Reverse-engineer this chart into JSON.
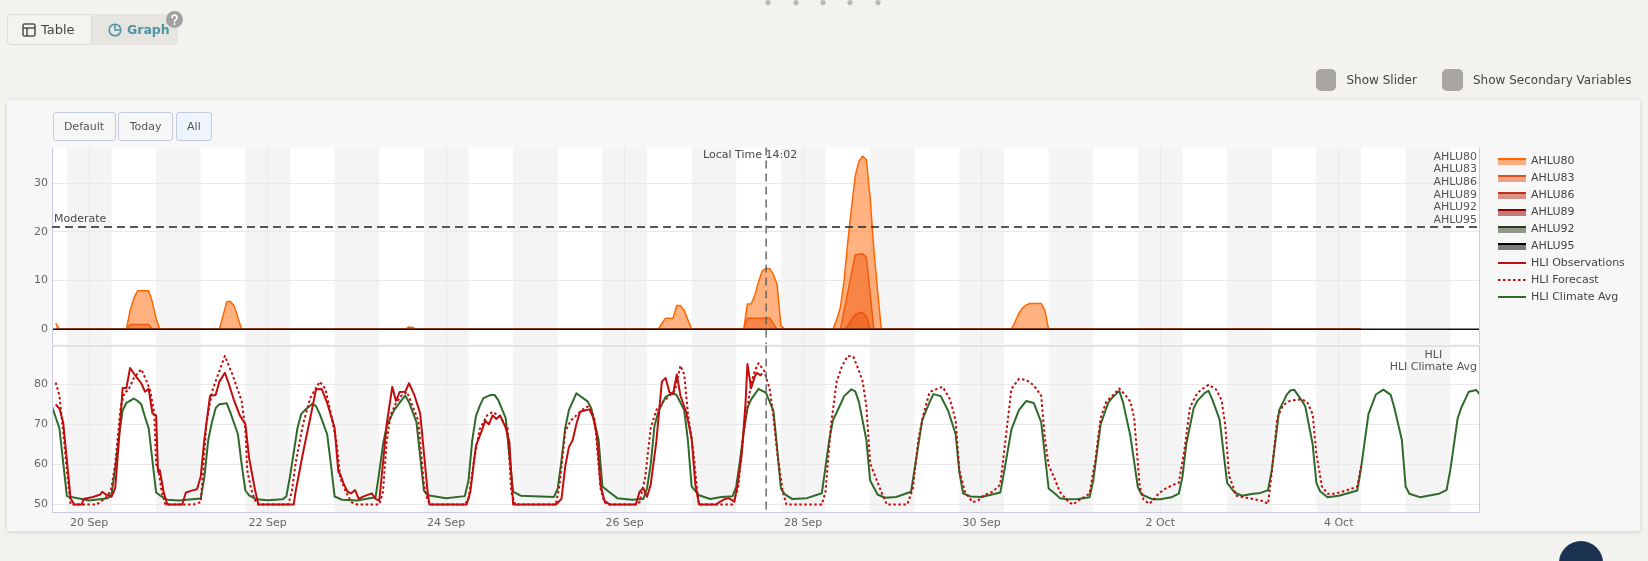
{
  "chart_data": [
    {
      "type": "area",
      "annotations": [
        "Table",
        "Graph",
        "Show Slider",
        "Show Secondary Variables",
        "Default",
        "Today",
        "All",
        "AHLU80",
        "AHLU83",
        "AHLU86",
        "AHLU89",
        "AHLU92",
        "AHLU95"
      ],
      "xlim": [
        "--09-19T14:00",
        "--10-05T14:00"
      ],
      "xticks": [
        {
          "value": "--09-20",
          "label": null
        },
        {
          "value": "--09-22",
          "label": null
        },
        {
          "value": "--09-24",
          "label": null
        },
        {
          "value": "--09-26",
          "label": null
        },
        {
          "value": "--09-28",
          "label": null
        },
        {
          "value": "--09-30",
          "label": null
        },
        {
          "value": "--10-02",
          "label": null
        },
        {
          "value": "--10-04",
          "label": null
        }
      ],
      "ylim": [
        -3,
        37.3
      ],
      "yticks": [
        0,
        10,
        20,
        30
      ],
      "grid": true,
      "legend": "right",
      "tick_labels": "y",
      "ref_lines": [
        {
          "axis": "y",
          "value": 21,
          "label": "Moderate",
          "color": "#222222",
          "line_style": "dashed"
        },
        {
          "axis": "x",
          "value": "--09-27T14:02",
          "label": "Local Time 14:02",
          "color": "#555555",
          "line_style": "dashed"
        }
      ],
      "bands": [
        {
          "axis": "x",
          "from": "--09-19T18:00",
          "to": "--09-20T06:00",
          "color": "#f4f4f4"
        },
        {
          "axis": "x",
          "from": "--09-20T18:00",
          "to": "--09-21T06:00",
          "color": "#f4f4f4"
        },
        {
          "axis": "x",
          "from": "--09-21T18:00",
          "to": "--09-22T06:00",
          "color": "#f4f4f4"
        },
        {
          "axis": "x",
          "from": "--09-22T18:00",
          "to": "--09-23T06:00",
          "color": "#f4f4f4"
        },
        {
          "axis": "x",
          "from": "--09-23T18:00",
          "to": "--09-24T06:00",
          "color": "#f4f4f4"
        },
        {
          "axis": "x",
          "from": "--09-24T18:00",
          "to": "--09-25T06:00",
          "color": "#f4f4f4"
        },
        {
          "axis": "x",
          "from": "--09-25T18:00",
          "to": "--09-26T06:00",
          "color": "#f4f4f4"
        },
        {
          "axis": "x",
          "from": "--09-26T18:00",
          "to": "--09-27T06:00",
          "color": "#f4f4f4"
        },
        {
          "axis": "x",
          "from": "--09-27T18:00",
          "to": "--09-28T06:00",
          "color": "#f4f4f4"
        },
        {
          "axis": "x",
          "from": "--09-28T18:00",
          "to": "--09-29T06:00",
          "color": "#f4f4f4"
        },
        {
          "axis": "x",
          "from": "--09-29T18:00",
          "to": "--09-30T06:00",
          "color": "#f4f4f4"
        },
        {
          "axis": "x",
          "from": "--09-30T18:00",
          "to": "--10-01T06:00",
          "color": "#f4f4f4"
        },
        {
          "axis": "x",
          "from": "--10-01T18:00",
          "to": "--10-02T06:00",
          "color": "#f4f4f4"
        },
        {
          "axis": "x",
          "from": "--10-02T18:00",
          "to": "--10-03T06:00",
          "color": "#f4f4f4"
        },
        {
          "axis": "x",
          "from": "--10-03T18:00",
          "to": "--10-04T06:00",
          "color": "#f4f4f4"
        },
        {
          "axis": "x",
          "from": "--10-04T18:00",
          "to": "--10-05T06:00",
          "color": "#f4f4f4"
        }
      ],
      "series": [
        {
          "name": "AHLU80",
          "color": "#ff6600",
          "x": [
            "--09-19T15:00",
            "--09-19T16:00",
            "--09-20T10:00",
            "--09-20T11:00",
            "--09-20T12:00",
            "--09-20T13:00",
            "--09-20T16:00",
            "--09-20T17:00",
            "--09-20T18:00",
            "--09-20T19:00",
            "--09-21T11:00",
            "--09-21T13:00",
            "--09-21T14:00",
            "--09-21T15:00",
            "--09-21T17:00",
            "--09-23T13:00",
            "--09-23T14:00",
            "--09-23T15:00",
            "--09-23T16:00",
            "--09-26T09:00",
            "--09-26T10:00",
            "--09-26T11:00",
            "--09-26T13:00",
            "--09-26T14:00",
            "--09-26T15:00",
            "--09-26T16:00",
            "--09-26T18:00",
            "--09-27T08:00",
            "--09-27T09:00",
            "--09-27T10:00",
            "--09-27T11:00",
            "--09-27T12:00",
            "--09-27T13:00",
            "--09-27T14:00",
            "--09-27T15:00",
            "--09-27T16:00",
            "--09-27T17:00",
            "--09-27T18:00",
            "--09-27T19:00",
            "--09-28T08:00",
            "--09-28T09:00",
            "--09-28T10:00",
            "--09-28T11:00",
            "--09-28T12:00",
            "--09-28T13:00",
            "--09-28T14:00",
            "--09-28T15:00",
            "--09-28T16:00",
            "--09-28T17:00",
            "--09-28T18:00",
            "--09-28T19:00",
            "--09-28T20:00",
            "--09-28T21:00",
            "--09-30T08:00",
            "--09-30T09:00",
            "--09-30T10:00",
            "--09-30T11:00",
            "--09-30T12:00",
            "--09-30T13:00",
            "--09-30T16:00",
            "--09-30T17:00",
            "--09-30T18:00",
            "--10-04T06:00"
          ],
          "values": [
            1.3,
            0,
            0,
            3.9,
            6.4,
            7.9,
            7.9,
            5.6,
            2.2,
            0,
            0,
            5.7,
            5.7,
            4.8,
            0,
            0,
            0.5,
            0.4,
            0,
            0,
            1.2,
            2.3,
            2.3,
            4.9,
            4.9,
            3.9,
            0,
            0,
            5.2,
            5.2,
            7,
            9.8,
            12,
            12.5,
            12.5,
            11.2,
            9.2,
            0.8,
            0,
            0,
            2,
            4.5,
            10,
            18,
            25,
            31.5,
            34.5,
            35.5,
            34.8,
            27,
            16.5,
            8,
            0,
            0,
            1.6,
            3.3,
            4.4,
            5,
            5.3,
            5.3,
            3.9,
            0,
            0
          ]
        },
        {
          "name": "AHLU83",
          "color": "#e0501a",
          "x": [
            "--09-19T15:00",
            "--09-20T10:00",
            "--09-20T11:00",
            "--09-20T16:00",
            "--09-20T17:00",
            "--09-27T08:00",
            "--09-27T09:00",
            "--09-27T15:00",
            "--09-27T16:00",
            "--09-27T17:00",
            "--09-28T10:00",
            "--09-28T11:00",
            "--09-28T12:00",
            "--09-28T13:00",
            "--09-28T14:00",
            "--09-28T16:00",
            "--09-28T17:00",
            "--09-28T18:00",
            "--09-28T19:00",
            "--10-04T06:00"
          ],
          "values": [
            0,
            0,
            1,
            1,
            0,
            0,
            2.3,
            2.3,
            1.1,
            0,
            0,
            3.8,
            7.7,
            11.5,
            15.3,
            15.5,
            14.8,
            7.4,
            0,
            0
          ]
        },
        {
          "name": "AHLU86",
          "color": "#c0301a",
          "x": [
            "--09-19T15:00",
            "--09-28T11:00",
            "--09-28T12:00",
            "--09-28T13:00",
            "--09-28T14:00",
            "--09-28T15:00",
            "--09-28T16:00",
            "--09-28T17:00",
            "--09-28T18:00",
            "--10-04T06:00"
          ],
          "values": [
            0,
            0,
            0.7,
            2,
            3,
            3.4,
            3.4,
            2.6,
            0,
            0
          ]
        },
        {
          "name": "AHLU89",
          "color": "#8b0000"
        },
        {
          "name": "AHLU92",
          "color": "#2e3b1e"
        },
        {
          "name": "AHLU95",
          "color": "#000000"
        }
      ]
    },
    {
      "type": "line",
      "annotations": [
        "HLI",
        "HLI Climate Avg"
      ],
      "xlim": [
        "--09-19T14:00",
        "--10-05T14:00"
      ],
      "xticks": [
        {
          "value": "--09-20",
          "label": "20 Sep"
        },
        {
          "value": "--09-22",
          "label": "22 Sep"
        },
        {
          "value": "--09-24",
          "label": "24 Sep"
        },
        {
          "value": "--09-26",
          "label": "26 Sep"
        },
        {
          "value": "--09-28",
          "label": "28 Sep"
        },
        {
          "value": "--09-30",
          "label": "30 Sep"
        },
        {
          "value": "--10-02",
          "label": "2 Oct"
        },
        {
          "value": "--10-04",
          "label": "4 Oct"
        }
      ],
      "ylim": [
        47.9,
        89.6
      ],
      "yticks": [
        50,
        60,
        70,
        80
      ],
      "grid": true,
      "legend": "top right",
      "ref_lines": [
        {
          "axis": "x",
          "value": "--09-27T14:02",
          "color": "#555555",
          "line_style": "dashed"
        }
      ],
      "bands": [
        {
          "axis": "x",
          "from": "--09-19T18:00",
          "to": "--09-20T06:00",
          "color": "#f4f4f4"
        },
        {
          "axis": "x",
          "from": "--09-20T18:00",
          "to": "--09-21T06:00",
          "color": "#f4f4f4"
        },
        {
          "axis": "x",
          "from": "--09-21T18:00",
          "to": "--09-22T06:00",
          "color": "#f4f4f4"
        },
        {
          "axis": "x",
          "from": "--09-22T18:00",
          "to": "--09-23T06:00",
          "color": "#f4f4f4"
        },
        {
          "axis": "x",
          "from": "--09-23T18:00",
          "to": "--09-24T06:00",
          "color": "#f4f4f4"
        },
        {
          "axis": "x",
          "from": "--09-24T18:00",
          "to": "--09-25T06:00",
          "color": "#f4f4f4"
        },
        {
          "axis": "x",
          "from": "--09-25T18:00",
          "to": "--09-26T06:00",
          "color": "#f4f4f4"
        },
        {
          "axis": "x",
          "from": "--09-26T18:00",
          "to": "--09-27T06:00",
          "color": "#f4f4f4"
        },
        {
          "axis": "x",
          "from": "--09-27T18:00",
          "to": "--09-28T06:00",
          "color": "#f4f4f4"
        },
        {
          "axis": "x",
          "from": "--09-28T18:00",
          "to": "--09-29T06:00",
          "color": "#f4f4f4"
        },
        {
          "axis": "x",
          "from": "--09-29T18:00",
          "to": "--09-30T06:00",
          "color": "#f4f4f4"
        },
        {
          "axis": "x",
          "from": "--09-30T18:00",
          "to": "--10-01T06:00",
          "color": "#f4f4f4"
        },
        {
          "axis": "x",
          "from": "--10-01T18:00",
          "to": "--10-02T06:00",
          "color": "#f4f4f4"
        },
        {
          "axis": "x",
          "from": "--10-02T18:00",
          "to": "--10-03T06:00",
          "color": "#f4f4f4"
        },
        {
          "axis": "x",
          "from": "--10-03T18:00",
          "to": "--10-04T06:00",
          "color": "#f4f4f4"
        },
        {
          "axis": "x",
          "from": "--10-04T18:00",
          "to": "--10-05T06:00",
          "color": "#f4f4f4"
        }
      ],
      "series": [
        {
          "name": "HLI Observations",
          "color": "#c00d0d",
          "x": [
            "--09-19T15:00",
            "--09-19T16:00",
            "--09-19T17:00",
            "--09-19T18:00",
            "--09-19T19:00",
            "--09-19T20:00",
            "--09-19T22:00",
            "--09-19T22:30",
            "--09-20T01:00",
            "--09-20T03:00",
            "--09-20T03:30",
            "--09-20T04:30",
            "--09-20T06:00",
            "--09-20T07:00",
            "--09-20T08:00",
            "--09-20T09:00",
            "--09-20T10:00",
            "--09-20T11:00",
            "--09-20T12:30",
            "--09-20T14:00",
            "--09-20T15:00",
            "--09-20T16:00",
            "--09-20T17:00",
            "--09-20T18:00",
            "--09-20T18:30",
            "--09-20T19:00",
            "--09-20T20:00",
            "--09-20T21:00",
            "--09-21T01:00",
            "--09-21T02:00",
            "--09-21T04:00",
            "--09-21T05:00",
            "--09-21T06:00",
            "--09-21T07:00",
            "--09-21T08:30",
            "--09-21T10:00",
            "--09-21T11:00",
            "--09-21T12:30",
            "--09-21T13:30",
            "--09-21T15:00",
            "--09-21T16:30",
            "--09-21T18:00",
            "--09-21T19:00",
            "--09-21T20:30",
            "--09-21T21:30",
            "--09-22T07:00",
            "--09-22T07:30",
            "--09-22T09:30",
            "--09-22T11:30",
            "--09-22T13:00",
            "--09-22T14:30",
            "--09-22T16:00",
            "--09-22T18:00",
            "--09-22T19:00",
            "--09-22T19:30",
            "--09-22T20:30",
            "--09-22T21:30",
            "--09-22T22:30",
            "--09-22T23:30",
            "--09-23T00:30",
            "--09-23T01:30",
            "--09-23T02:30",
            "--09-23T04:00",
            "--09-23T05:00",
            "--09-23T06:00",
            "--09-23T07:00",
            "--09-23T08:00",
            "--09-23T09:30",
            "--09-23T10:30",
            "--09-23T11:30",
            "--09-23T13:00",
            "--09-23T14:00",
            "--09-23T15:30",
            "--09-23T17:00",
            "--09-23T19:00",
            "--09-23T19:30",
            "--09-24T05:30",
            "--09-24T06:30",
            "--09-24T08:00",
            "--09-24T09:30",
            "--09-24T10:30",
            "--09-24T11:30",
            "--09-24T12:30",
            "--09-24T13:30",
            "--09-24T14:30",
            "--09-24T16:00",
            "--09-24T17:00",
            "--09-24T18:00",
            "--09-25T05:30",
            "--09-25T07:00",
            "--09-25T08:00",
            "--09-25T09:00",
            "--09-25T10:00",
            "--09-25T11:00",
            "--09-25T12:00",
            "--09-25T13:30",
            "--09-25T14:30",
            "--09-25T15:30",
            "--09-25T16:30",
            "--09-25T17:30",
            "--09-25T18:30",
            "--09-25T20:00",
            "--09-26T03:00",
            "--09-26T04:00",
            "--09-26T05:00",
            "--09-26T06:00",
            "--09-26T07:00",
            "--09-26T08:30",
            "--09-26T10:00",
            "--09-26T11:00",
            "--09-26T12:00",
            "--09-26T13:00",
            "--09-26T14:00",
            "--09-26T15:00",
            "--09-26T16:30",
            "--09-26T18:00",
            "--09-26T19:00",
            "--09-26T20:00",
            "--09-27T00:30",
            "--09-27T01:30",
            "--09-27T03:00",
            "--09-27T04:00",
            "--09-27T05:30",
            "--09-27T06:30",
            "--09-27T07:30",
            "--09-27T08:30",
            "--09-27T09:00",
            "--09-27T10:00",
            "--09-27T11:00",
            "--09-27T11:30",
            "--09-27T12:30",
            "--09-27T13:00"
          ],
          "values": [
            74.9,
            73.9,
            70.5,
            61,
            51.5,
            50,
            50,
            51.4,
            51.9,
            52.5,
            53.2,
            52.5,
            51.9,
            54.1,
            66,
            79,
            79,
            84,
            82,
            80.2,
            78.1,
            78.8,
            72.7,
            72.2,
            58.1,
            58.5,
            53.2,
            50,
            50,
            53,
            53.6,
            53.8,
            57,
            66.5,
            77.1,
            77.3,
            80.6,
            82.8,
            80.2,
            75.8,
            72.2,
            70,
            61.6,
            54.1,
            50,
            50,
            53.2,
            62.9,
            71.8,
            78.7,
            78.8,
            75.3,
            69.1,
            58.1,
            57.6,
            55,
            53.2,
            52.8,
            53.6,
            51.4,
            51.9,
            52.3,
            52.8,
            51.4,
            51,
            60.3,
            70,
            79.3,
            75.8,
            78,
            78.1,
            80.2,
            77.1,
            72.7,
            53.2,
            50,
            50,
            53.2,
            64.7,
            68.2,
            70.9,
            70,
            72.2,
            71.3,
            72.2,
            69.1,
            65.6,
            50,
            50,
            51.4,
            59.4,
            64.3,
            66,
            70,
            73.1,
            73.5,
            73.7,
            71.8,
            67.4,
            55,
            51,
            50,
            50,
            53.2,
            54.1,
            51.9,
            55,
            65.6,
            80.6,
            81.5,
            78,
            77.5,
            82.4,
            77.1,
            73.1,
            66.5,
            55,
            50,
            50,
            50.6,
            51.4,
            51.6,
            50.7,
            55.9,
            62.9,
            75.3,
            85,
            79,
            81.9,
            82.8,
            82.2,
            82.6
          ]
        },
        {
          "name": "HLI Forecast",
          "color": "#c00d0d",
          "line_style": "dotted",
          "x": [
            "--09-19T15:00",
            "--09-19T16:00",
            "--09-19T17:00",
            "--09-19T18:00",
            "--09-19T19:00",
            "--09-20T02:00",
            "--09-20T03:30",
            "--09-20T05:00",
            "--09-20T06:00",
            "--09-20T07:00",
            "--09-20T08:30",
            "--09-20T09:30",
            "--09-20T10:30",
            "--09-20T12:00",
            "--09-20T14:00",
            "--09-20T15:30",
            "--09-20T16:30",
            "--09-20T17:30",
            "--09-20T18:00",
            "--09-20T18:30",
            "--09-20T19:30",
            "--09-20T20:30",
            "--09-21T04:00",
            "--09-21T06:00",
            "--09-21T06:30",
            "--09-21T07:30",
            "--09-21T09:00",
            "--09-21T10:30",
            "--09-21T12:30",
            "--09-21T14:30",
            "--09-21T17:00",
            "--09-21T18:00",
            "--09-21T18:30",
            "--09-21T19:30",
            "--09-21T20:30",
            "--09-21T21:30",
            "--09-22T05:30",
            "--09-22T06:30",
            "--09-22T07:30",
            "--09-22T09:30",
            "--09-22T11:30",
            "--09-22T14:00",
            "--09-22T15:30",
            "--09-22T17:00",
            "--09-22T18:30",
            "--09-22T19:30",
            "--09-22T21:00",
            "--09-22T22:30",
            "--09-23T00:00",
            "--09-23T06:00",
            "--09-23T07:00",
            "--09-23T08:00",
            "--09-23T09:00",
            "--09-23T10:30",
            "--09-23T12:00",
            "--09-23T13:30",
            "--09-23T15:00",
            "--09-23T16:30",
            "--09-23T18:00",
            "--09-23T19:00",
            "--09-23T20:00",
            "--09-24T05:00",
            "--09-24T06:00",
            "--09-24T07:30",
            "--09-24T09:00",
            "--09-24T11:00",
            "--09-24T12:30",
            "--09-24T14:30",
            "--09-24T16:30",
            "--09-24T17:30",
            "--09-24T18:30",
            "--09-25T05:30",
            "--09-25T06:30",
            "--09-25T08:00",
            "--09-25T09:30",
            "--09-25T11:00",
            "--09-25T12:30",
            "--09-25T14:00",
            "--09-25T15:00",
            "--09-25T16:00",
            "--09-25T17:30",
            "--09-25T18:30",
            "--09-25T19:30",
            "--09-26T03:00",
            "--09-26T04:00",
            "--09-26T05:30",
            "--09-26T07:00",
            "--09-26T08:30",
            "--09-26T10:00",
            "--09-26T12:00",
            "--09-26T13:30",
            "--09-26T15:00",
            "--09-26T16:00",
            "--09-26T17:00",
            "--09-26T18:30",
            "--09-26T19:30",
            "--09-26T20:00",
            "--09-27T05:00",
            "--09-27T06:30",
            "--09-27T08:00",
            "--09-27T10:00",
            "--09-27T11:00",
            "--09-27T12:00",
            "--09-27T13:30",
            "--09-27T15:00",
            "--09-27T16:00",
            "--09-27T17:00",
            "--09-27T18:30",
            "--09-27T19:30",
            "--09-28T05:00",
            "--09-28T06:00",
            "--09-28T07:30",
            "--09-28T09:00",
            "--09-28T10:30",
            "--09-28T12:00",
            "--09-28T13:30",
            "--09-28T15:00",
            "--09-28T16:00",
            "--09-28T17:00",
            "--09-28T18:00",
            "--09-28T19:30",
            "--09-28T21:00",
            "--09-28T22:30",
            "--09-29T04:00",
            "--09-29T05:30",
            "--09-29T07:00",
            "--09-29T08:30",
            "--09-29T10:00",
            "--09-29T12:00",
            "--09-29T13:30",
            "--09-29T15:30",
            "--09-29T17:00",
            "--09-29T18:00",
            "--09-29T19:30",
            "--09-29T21:30",
            "--09-29T23:00",
            "--09-30T00:30",
            "--09-30T03:00",
            "--09-30T05:00",
            "--09-30T06:00",
            "--09-30T08:00",
            "--09-30T10:00",
            "--09-30T12:00",
            "--09-30T14:00",
            "--09-30T16:00",
            "--09-30T17:00",
            "--09-30T18:00",
            "--09-30T19:30",
            "--09-30T21:00",
            "--09-30T23:00",
            "--10-01T00:30",
            "--10-01T02:30",
            "--10-01T05:00",
            "--10-01T06:30",
            "--10-01T08:00",
            "--10-01T09:30",
            "--10-01T11:30",
            "--10-01T13:00",
            "--10-01T14:30",
            "--10-01T16:00",
            "--10-01T17:00",
            "--10-01T18:30",
            "--10-01T19:30",
            "--10-01T21:00",
            "--10-01T22:00",
            "--10-01T23:30",
            "--10-02T01:30",
            "--10-02T03:30",
            "--10-02T05:00",
            "--10-02T06:30",
            "--10-02T08:00",
            "--10-02T10:00",
            "--10-02T11:30",
            "--10-02T13:00",
            "--10-02T15:00",
            "--10-02T16:30",
            "--10-02T17:30",
            "--10-02T18:30",
            "--10-02T20:30",
            "--10-02T22:30",
            "--10-03T01:30",
            "--10-03T03:30",
            "--10-03T05:00",
            "--10-03T06:00",
            "--10-03T07:30",
            "--10-03T09:00",
            "--10-03T11:00",
            "--10-03T14:00",
            "--10-03T15:30",
            "--10-03T17:00",
            "--10-03T18:00",
            "--10-03T19:30",
            "--10-03T21:00",
            "--10-03T23:00",
            "--10-04T00:30",
            "--10-04T03:00",
            "--10-04T05:00",
            "--10-04T06:00"
          ],
          "values": [
            80.4,
            77.1,
            68.2,
            58.5,
            50,
            50,
            51,
            52.1,
            54.1,
            60.3,
            74.4,
            78,
            78.4,
            81.5,
            83.7,
            80.6,
            78,
            72.7,
            60,
            59.4,
            53.2,
            50,
            50,
            50.6,
            56.7,
            70,
            78,
            82,
            87,
            82.4,
            75.8,
            68.7,
            58.5,
            54.1,
            51.2,
            50,
            50,
            53.2,
            60.3,
            70,
            76.6,
            80.6,
            78.8,
            72.7,
            65.6,
            56.7,
            53.2,
            50.6,
            50,
            50,
            53.2,
            65.6,
            72.2,
            75.3,
            77.1,
            78,
            74.4,
            70.9,
            55,
            51,
            50,
            50,
            51.4,
            61.2,
            68.7,
            72.2,
            73.1,
            71.8,
            69.1,
            53.2,
            50,
            50,
            55,
            68.2,
            70.9,
            72.2,
            73.5,
            74.4,
            73.5,
            70.9,
            54.1,
            50.6,
            50,
            50,
            50.6,
            56.7,
            69.1,
            73.5,
            75.3,
            77.1,
            78.4,
            84.6,
            82.4,
            72.7,
            62.9,
            53.2,
            50,
            50,
            54.1,
            68.2,
            80.2,
            83.3,
            85.2,
            83.3,
            78.8,
            71.8,
            62.9,
            53.2,
            50,
            50,
            53.2,
            70,
            80.6,
            84.6,
            87,
            86.8,
            83.3,
            80.6,
            74.4,
            60.3,
            56.7,
            53.2,
            50,
            50,
            54.1,
            66.5,
            73.1,
            78,
            78.8,
            79.3,
            76.2,
            70.9,
            58.5,
            53.2,
            50.6,
            51,
            52.3,
            53.2,
            55,
            62.9,
            78.8,
            81.3,
            81,
            79.7,
            77.1,
            66.5,
            59.8,
            56.7,
            53.2,
            51,
            50,
            51.3,
            52.7,
            60.8,
            71.6,
            75.6,
            77.4,
            78.9,
            77.4,
            75.6,
            71.6,
            54.5,
            51.3,
            50.2,
            50.9,
            52.7,
            54,
            54.9,
            55.4,
            63.5,
            74.2,
            77.8,
            78.9,
            79.8,
            78.7,
            76,
            69.8,
            57.2,
            52.2,
            51.8,
            51.3,
            50.9,
            50.2,
            58.1,
            71.6,
            74.7,
            75.9,
            76.2,
            75.6,
            72.5,
            62.6,
            54.5,
            52.7,
            52.7,
            53.1,
            53.8,
            54.5,
            59.5
          ]
        },
        {
          "name": "HLI Climate Avg",
          "color": "#2e6b2a",
          "x": [
            "--09-19T14:00",
            "--09-19T16:00",
            "--09-19T18:00",
            "--09-19T22:00",
            "--09-20T00:00",
            "--09-20T05:00",
            "--09-20T06:00",
            "--09-20T07:00",
            "--09-20T08:00",
            "--09-20T09:00",
            "--09-20T10:00",
            "--09-20T12:00",
            "--09-20T13:00",
            "--09-20T14:00",
            "--09-20T15:00",
            "--09-20T16:00",
            "--09-20T18:00",
            "--09-20T19:00",
            "--09-20T21:00",
            "--09-21T00:00",
            "--09-21T06:00",
            "--09-21T07:00",
            "--09-21T08:00",
            "--09-21T09:00",
            "--09-21T10:00",
            "--09-21T11:00",
            "--09-21T13:00",
            "--09-21T14:00",
            "--09-21T16:00",
            "--09-21T17:00",
            "--09-21T18:00",
            "--09-21T19:00",
            "--09-21T21:00",
            "--09-22T00:00",
            "--09-22T04:00",
            "--09-22T05:00",
            "--09-22T06:00",
            "--09-22T07:00",
            "--09-22T08:00",
            "--09-22T09:00",
            "--09-22T10:00",
            "--09-22T12:00",
            "--09-22T13:00",
            "--09-22T14:00",
            "--09-22T16:00",
            "--09-22T17:00",
            "--09-22T18:00",
            "--09-22T20:00",
            "--09-23T00:00",
            "--09-23T05:00",
            "--09-23T06:00",
            "--09-23T07:00",
            "--09-23T08:00",
            "--09-23T10:00",
            "--09-23T12:00",
            "--09-23T13:00",
            "--09-23T14:00",
            "--09-23T16:00",
            "--09-23T17:00",
            "--09-23T18:00",
            "--09-23T19:00",
            "--09-24T00:00",
            "--09-24T05:00",
            "--09-24T06:00",
            "--09-24T07:00",
            "--09-24T08:00",
            "--09-24T09:00",
            "--09-24T10:00",
            "--09-24T12:00",
            "--09-24T13:00",
            "--09-24T14:00",
            "--09-24T16:00",
            "--09-24T17:00",
            "--09-24T18:00",
            "--09-24T20:00",
            "--09-25T05:00",
            "--09-25T06:00",
            "--09-25T07:00",
            "--09-25T08:00",
            "--09-25T09:00",
            "--09-25T11:00",
            "--09-25T14:00",
            "--09-25T15:00",
            "--09-25T17:00",
            "--09-25T18:00",
            "--09-25T20:00",
            "--09-25T22:00",
            "--09-26T02:00",
            "--09-26T05:00",
            "--09-26T06:00",
            "--09-26T07:00",
            "--09-26T08:00",
            "--09-26T09:00",
            "--09-26T11:00",
            "--09-26T13:00",
            "--09-26T14:00",
            "--09-26T16:00",
            "--09-26T17:00",
            "--09-26T18:00",
            "--09-26T20:00",
            "--09-26T23:00",
            "--09-27T02:00",
            "--09-27T05:00",
            "--09-27T06:00",
            "--09-27T07:00",
            "--09-27T08:00",
            "--09-27T09:00",
            "--09-27T10:00",
            "--09-27T12:00",
            "--09-27T14:00",
            "--09-27T16:00",
            "--09-27T17:00",
            "--09-27T18:00",
            "--09-27T19:00",
            "--09-27T21:00",
            "--09-28T01:00",
            "--09-28T05:00",
            "--09-28T07:00",
            "--09-28T08:00",
            "--09-28T10:00",
            "--09-28T11:00",
            "--09-28T13:00",
            "--09-28T14:00",
            "--09-28T15:00",
            "--09-28T17:00",
            "--09-28T18:00",
            "--09-28T20:00",
            "--09-28T22:00",
            "--09-29T01:00",
            "--09-29T05:00",
            "--09-29T07:00",
            "--09-29T08:00",
            "--09-29T10:00",
            "--09-29T11:00",
            "--09-29T13:00",
            "--09-29T15:00",
            "--09-29T17:00",
            "--09-29T18:00",
            "--09-29T19:00",
            "--09-29T21:00",
            "--09-30T00:00",
            "--09-30T05:00",
            "--09-30T06:00",
            "--09-30T08:00",
            "--09-30T10:00",
            "--09-30T12:00",
            "--09-30T14:00",
            "--09-30T16:00",
            "--09-30T18:00",
            "--09-30T20:00",
            "--09-30T21:00",
            "--09-30T23:00",
            "--10-01T02:00",
            "--10-01T05:00",
            "--10-01T06:00",
            "--10-01T08:00",
            "--10-01T10:00",
            "--10-01T11:00",
            "--10-01T13:00",
            "--10-01T14:00",
            "--10-01T16:00",
            "--10-01T18:00",
            "--10-01T19:00",
            "--10-01T22:00",
            "--10-02T00:00",
            "--10-02T03:00",
            "--10-02T05:00",
            "--10-02T06:00",
            "--10-02T07:00",
            "--10-02T09:00",
            "--10-02T10:00",
            "--10-02T12:00",
            "--10-02T13:00",
            "--10-02T14:00",
            "--10-02T16:00",
            "--10-02T18:00",
            "--10-02T20:00",
            "--10-02T22:00",
            "--10-03T01:00",
            "--10-03T03:00",
            "--10-03T05:00",
            "--10-03T06:00",
            "--10-03T08:00",
            "--10-03T10:00",
            "--10-03T11:00",
            "--10-03T12:00",
            "--10-03T14:00",
            "--10-03T15:00",
            "--10-03T17:00",
            "--10-03T18:00",
            "--10-03T19:00",
            "--10-03T21:00",
            "--10-04T00:00",
            "--10-04T02:00",
            "--10-04T05:00",
            "--10-04T06:00",
            "--10-04T08:00",
            "--10-04T10:00",
            "--10-04T12:00",
            "--10-04T14:00",
            "--10-04T15:00",
            "--10-04T17:00",
            "--10-04T18:00",
            "--10-04T19:00",
            "--10-04T22:00",
            "--10-05T00:00",
            "--10-05T03:00",
            "--10-05T05:00",
            "--10-05T06:00",
            "--10-05T08:00",
            "--10-05T09:00",
            "--10-05T11:00",
            "--10-05T13:00",
            "--10-05T14:00"
          ],
          "values": [
            74.4,
            69,
            52.1,
            51.4,
            51,
            51.6,
            52.5,
            59,
            67,
            73.5,
            75.3,
            76.4,
            75.8,
            75,
            71.8,
            69,
            53,
            52.3,
            51.2,
            51,
            51.5,
            57,
            66,
            70.5,
            74,
            75,
            75.2,
            72.8,
            67.5,
            60,
            53.5,
            52.3,
            51.3,
            51.1,
            51.3,
            52,
            57,
            63,
            69,
            72.5,
            73.5,
            75.1,
            74.5,
            72.5,
            67.5,
            60,
            52,
            51.2,
            51,
            51.8,
            58,
            65,
            69.5,
            73.5,
            76,
            77.1,
            75.5,
            70.5,
            62,
            53.5,
            52.3,
            51.6,
            52.1,
            56,
            66,
            72,
            74.5,
            76.5,
            77.3,
            77.3,
            76,
            71.5,
            62,
            53.2,
            52.2,
            51.9,
            54,
            61,
            69,
            73.5,
            77.7,
            75.7,
            74,
            66,
            54.5,
            53,
            51.6,
            51.2,
            51.4,
            54,
            60,
            69.5,
            73,
            76.8,
            77.8,
            77.2,
            73.5,
            66,
            54.5,
            52.3,
            51.4,
            51.9,
            52.1,
            54.5,
            61,
            68,
            74,
            76.2,
            78.8,
            77.8,
            73.3,
            64,
            54,
            52.6,
            51.4,
            51.6,
            52.8,
            66,
            71,
            74.9,
            77,
            78.7,
            78.2,
            75.5,
            66,
            56,
            52.5,
            51.7,
            51.9,
            53.2,
            65,
            71,
            75.5,
            77.5,
            77,
            73.3,
            67.5,
            58,
            52.8,
            52,
            51.9,
            53,
            58,
            68.7,
            73.5,
            75.8,
            75.3,
            70.5,
            54,
            52.5,
            51.6,
            51.3,
            51.4,
            51.8,
            56,
            70,
            75.3,
            76.5,
            78.3,
            75.5,
            67,
            54.3,
            52.5,
            51.3,
            51.3,
            51.8,
            52.7,
            57,
            65,
            74,
            75.8,
            77.8,
            78.3,
            76.2,
            71.1,
            55.4,
            53,
            52.2,
            52.7,
            52.9,
            53.6,
            58.5,
            73.5,
            77.3,
            78.4,
            78.6,
            76,
            74.5,
            65,
            55.4,
            53.3,
            51.8,
            52.2,
            52.7,
            53.5,
            59,
            72.5,
            77.4,
            78.6,
            77.3,
            74,
            66,
            54.5,
            52.7,
            51.8,
            52.2,
            52.7,
            53.6,
            58.5,
            71.5,
            74.2,
            78.1,
            78.5,
            77.4
          ]
        }
      ]
    }
  ]
}
